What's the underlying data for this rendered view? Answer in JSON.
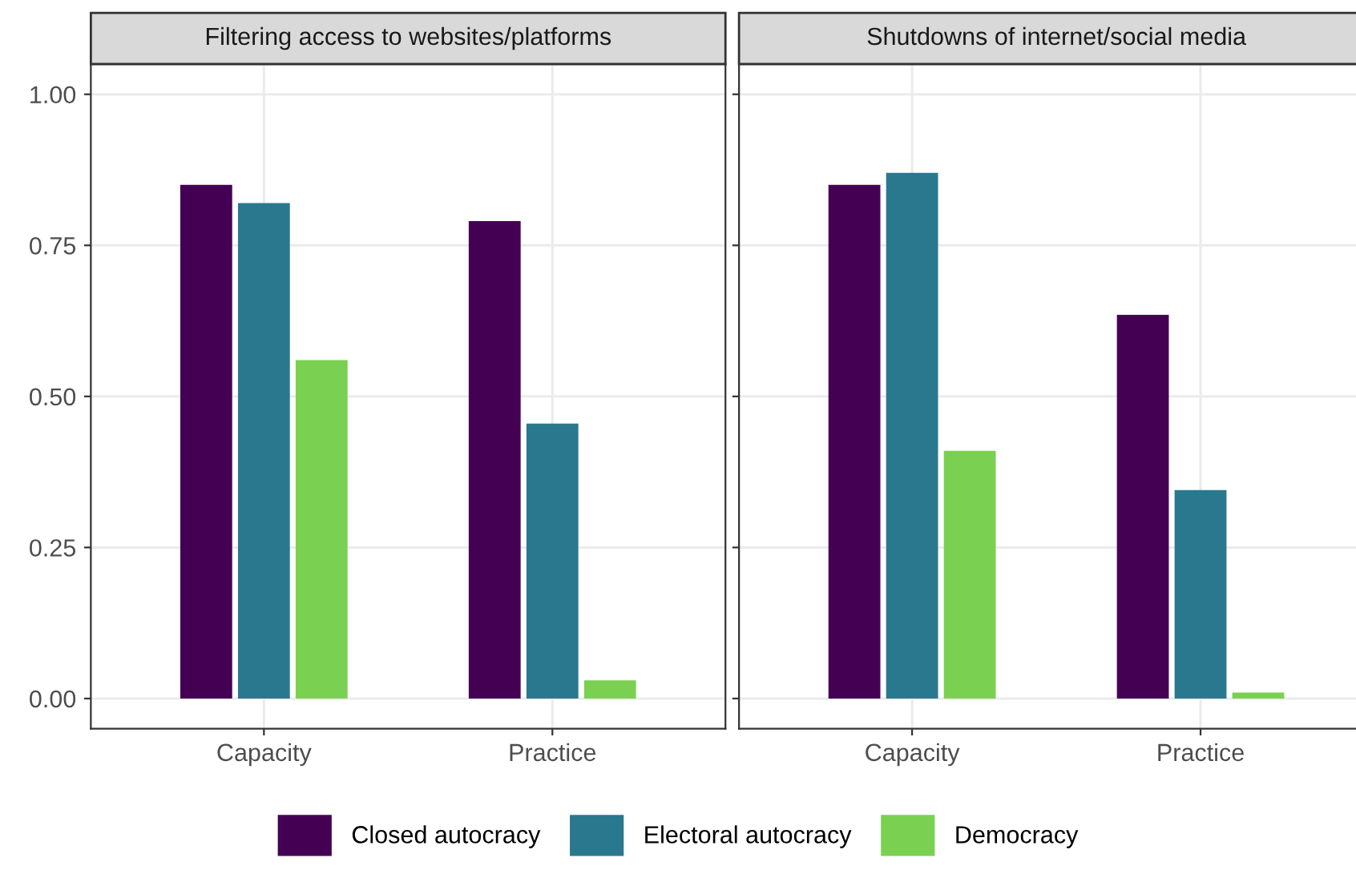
{
  "chart_data": [
    {
      "type": "bar",
      "title": "Filtering access to websites/platforms",
      "categories": [
        "Capacity",
        "Practice"
      ],
      "series": [
        {
          "name": "Closed autocracy",
          "color": "#440154",
          "values": [
            0.85,
            0.79
          ]
        },
        {
          "name": "Electoral autocracy",
          "color": "#2a788e",
          "values": [
            0.82,
            0.455
          ]
        },
        {
          "name": "Democracy",
          "color": "#7ad151",
          "values": [
            0.56,
            0.03
          ]
        }
      ],
      "ylim": [
        -0.05,
        1.05
      ],
      "yticks": [
        {
          "value": 0,
          "label": "0.00"
        },
        {
          "value": 0.25,
          "label": "0.25"
        },
        {
          "value": 0.5,
          "label": "0.50"
        },
        {
          "value": 0.75,
          "label": "0.75"
        },
        {
          "value": 1,
          "label": "1.00"
        }
      ],
      "grid": true,
      "legend": "bottom"
    },
    {
      "type": "bar",
      "title": "Shutdowns of internet/social media",
      "categories": [
        "Capacity",
        "Practice"
      ],
      "series": [
        {
          "name": "Closed autocracy",
          "color": "#440154",
          "values": [
            0.85,
            0.635
          ]
        },
        {
          "name": "Electoral autocracy",
          "color": "#2a788e",
          "values": [
            0.87,
            0.345
          ]
        },
        {
          "name": "Democracy",
          "color": "#7ad151",
          "values": [
            0.41,
            0.01
          ]
        }
      ],
      "ylim": [
        -0.05,
        1.05
      ],
      "yticks": [
        {
          "value": 0,
          "label": null
        },
        {
          "value": 0.25,
          "label": null
        },
        {
          "value": 0.5,
          "label": null
        },
        {
          "value": 0.75,
          "label": null
        },
        {
          "value": 1,
          "label": null
        }
      ],
      "grid": true,
      "legend": "bottom",
      "tick_labels": "x"
    }
  ]
}
